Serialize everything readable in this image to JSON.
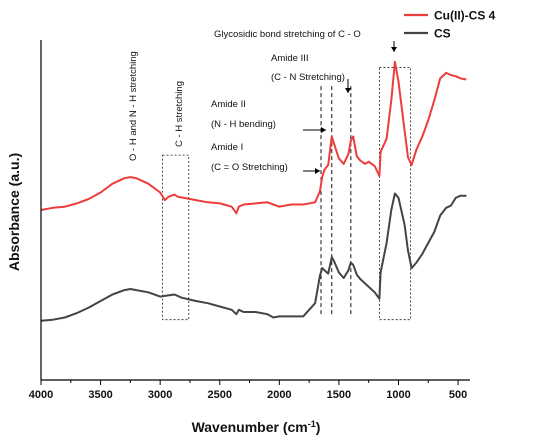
{
  "chart_data": {
    "type": "line",
    "xlabel": "Wavenumber (cm",
    "xlabel_sup": "-1",
    "xlabel_end": ")",
    "ylabel": "Absorbance (a.u.)",
    "xlim": [
      4000,
      400
    ],
    "ylim": [
      0,
      3.1
    ],
    "x_ticks": [
      "4000",
      "3500",
      "3000",
      "2500",
      "2000",
      "1500",
      "1000",
      "500"
    ],
    "grid": false,
    "legend_position": "top-right",
    "series": [
      {
        "name": "Cu(II)-CS 4",
        "color": "#ee3b3b",
        "points": [
          [
            4000,
            1.55
          ],
          [
            3900,
            1.57
          ],
          [
            3800,
            1.58
          ],
          [
            3700,
            1.61
          ],
          [
            3600,
            1.65
          ],
          [
            3500,
            1.71
          ],
          [
            3400,
            1.79
          ],
          [
            3300,
            1.84
          ],
          [
            3250,
            1.85
          ],
          [
            3200,
            1.84
          ],
          [
            3100,
            1.79
          ],
          [
            3000,
            1.71
          ],
          [
            2960,
            1.64
          ],
          [
            2930,
            1.67
          ],
          [
            2880,
            1.69
          ],
          [
            2850,
            1.67
          ],
          [
            2800,
            1.66
          ],
          [
            2700,
            1.64
          ],
          [
            2600,
            1.62
          ],
          [
            2500,
            1.61
          ],
          [
            2400,
            1.58
          ],
          [
            2360,
            1.52
          ],
          [
            2340,
            1.58
          ],
          [
            2300,
            1.6
          ],
          [
            2200,
            1.61
          ],
          [
            2100,
            1.62
          ],
          [
            2050,
            1.6
          ],
          [
            2000,
            1.58
          ],
          [
            1900,
            1.6
          ],
          [
            1800,
            1.6
          ],
          [
            1700,
            1.62
          ],
          [
            1660,
            1.72
          ],
          [
            1640,
            1.85
          ],
          [
            1620,
            1.92
          ],
          [
            1590,
            1.96
          ],
          [
            1560,
            2.22
          ],
          [
            1540,
            2.15
          ],
          [
            1500,
            2.02
          ],
          [
            1460,
            1.97
          ],
          [
            1420,
            2.06
          ],
          [
            1400,
            2.18
          ],
          [
            1380,
            2.22
          ],
          [
            1350,
            2.04
          ],
          [
            1320,
            2.0
          ],
          [
            1280,
            1.97
          ],
          [
            1250,
            1.99
          ],
          [
            1200,
            1.95
          ],
          [
            1160,
            1.86
          ],
          [
            1150,
            2.08
          ],
          [
            1100,
            2.2
          ],
          [
            1060,
            2.55
          ],
          [
            1030,
            2.9
          ],
          [
            1000,
            2.72
          ],
          [
            950,
            2.28
          ],
          [
            920,
            2.03
          ],
          [
            890,
            1.96
          ],
          [
            850,
            2.1
          ],
          [
            800,
            2.22
          ],
          [
            750,
            2.37
          ],
          [
            700,
            2.55
          ],
          [
            650,
            2.75
          ],
          [
            600,
            2.8
          ],
          [
            560,
            2.78
          ],
          [
            520,
            2.77
          ],
          [
            480,
            2.75
          ],
          [
            430,
            2.74
          ]
        ]
      },
      {
        "name": "CS",
        "color": "#444444",
        "points": [
          [
            4000,
            0.54
          ],
          [
            3900,
            0.55
          ],
          [
            3800,
            0.57
          ],
          [
            3700,
            0.61
          ],
          [
            3600,
            0.66
          ],
          [
            3500,
            0.72
          ],
          [
            3400,
            0.78
          ],
          [
            3300,
            0.82
          ],
          [
            3250,
            0.83
          ],
          [
            3200,
            0.82
          ],
          [
            3100,
            0.8
          ],
          [
            3000,
            0.76
          ],
          [
            2940,
            0.77
          ],
          [
            2880,
            0.78
          ],
          [
            2820,
            0.75
          ],
          [
            2700,
            0.72
          ],
          [
            2600,
            0.7
          ],
          [
            2500,
            0.67
          ],
          [
            2400,
            0.64
          ],
          [
            2360,
            0.6
          ],
          [
            2340,
            0.64
          ],
          [
            2300,
            0.62
          ],
          [
            2200,
            0.62
          ],
          [
            2100,
            0.6
          ],
          [
            2050,
            0.57
          ],
          [
            2000,
            0.58
          ],
          [
            1900,
            0.58
          ],
          [
            1800,
            0.58
          ],
          [
            1700,
            0.7
          ],
          [
            1660,
            0.95
          ],
          [
            1640,
            1.02
          ],
          [
            1620,
            1.0
          ],
          [
            1590,
            0.97
          ],
          [
            1560,
            1.12
          ],
          [
            1540,
            1.08
          ],
          [
            1500,
            0.98
          ],
          [
            1460,
            0.93
          ],
          [
            1420,
            1.0
          ],
          [
            1400,
            1.07
          ],
          [
            1380,
            1.05
          ],
          [
            1350,
            0.96
          ],
          [
            1320,
            0.92
          ],
          [
            1280,
            0.88
          ],
          [
            1200,
            0.8
          ],
          [
            1160,
            0.74
          ],
          [
            1150,
            0.98
          ],
          [
            1100,
            1.25
          ],
          [
            1060,
            1.55
          ],
          [
            1030,
            1.7
          ],
          [
            1000,
            1.66
          ],
          [
            950,
            1.42
          ],
          [
            920,
            1.18
          ],
          [
            890,
            1.02
          ],
          [
            850,
            1.07
          ],
          [
            800,
            1.15
          ],
          [
            750,
            1.25
          ],
          [
            700,
            1.35
          ],
          [
            650,
            1.5
          ],
          [
            600,
            1.57
          ],
          [
            560,
            1.59
          ],
          [
            520,
            1.66
          ],
          [
            480,
            1.68
          ],
          [
            430,
            1.68
          ]
        ]
      }
    ],
    "annotations": [
      {
        "text": "O - H and N - H stretching",
        "rotated": true,
        "anchor_x": 3250,
        "anchor_y": 1.95
      },
      {
        "text": "C - H stretching",
        "rotated": true,
        "anchor_x": 2880,
        "anchor_y": 2.1
      },
      {
        "text": "Amide III",
        "anchor_x": 1830,
        "anchor_y": 2.7
      },
      {
        "text": "(C - N Stretching)",
        "anchor_x": 1830,
        "anchor_y": 2.52
      },
      {
        "text": "Amide II",
        "anchor_x": 2100,
        "anchor_y": 2.37
      },
      {
        "text": "(N - H bending)",
        "anchor_x": 2100,
        "anchor_y": 2.19
      },
      {
        "text": "Amide I",
        "anchor_x": 2100,
        "anchor_y": 2.03
      },
      {
        "text": "(C = O Stretching)",
        "anchor_x": 2100,
        "anchor_y": 1.85
      },
      {
        "text": "Glycosidic bond stretching of C - O",
        "anchor_x": 2430,
        "anchor_y": 3.02
      }
    ],
    "regions": [
      {
        "x_from": 2980,
        "x_to": 2760,
        "y_from": 0.55,
        "y_to": 2.05
      },
      {
        "x_from": 1160,
        "x_to": 900,
        "y_from": 0.55,
        "y_to": 2.85
      }
    ],
    "marker_lines": [
      1650,
      1560,
      1400
    ]
  }
}
